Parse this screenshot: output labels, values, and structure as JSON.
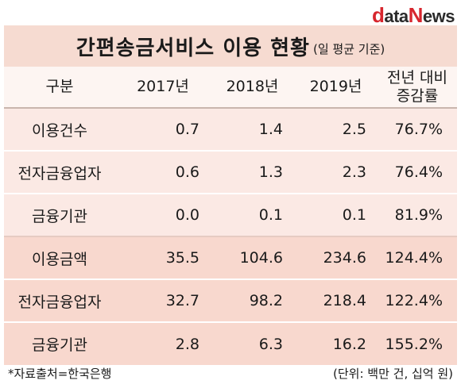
{
  "logo": {
    "part1": "d",
    "part2": "ata",
    "part3": "N",
    "part4": "ews"
  },
  "title": {
    "main": "간편송금서비스 이용 현황",
    "sub": "(일 평균 기준)"
  },
  "table": {
    "headers": [
      "구분",
      "2017년",
      "2018년",
      "2019년",
      "전년 대비",
      "증감률"
    ],
    "rows": [
      {
        "label": "이용건수",
        "y2017": "0.7",
        "y2018": "1.4",
        "y2019": "2.5",
        "rate": "76.7%"
      },
      {
        "label": "전자금융업자",
        "y2017": "0.6",
        "y2018": "1.3",
        "y2019": "2.3",
        "rate": "76.4%"
      },
      {
        "label": "금융기관",
        "y2017": "0.0",
        "y2018": "0.1",
        "y2019": "0.1",
        "rate": "81.9%"
      },
      {
        "label": "이용금액",
        "y2017": "35.5",
        "y2018": "104.6",
        "y2019": "234.6",
        "rate": "124.4%"
      },
      {
        "label": "전자금융업자",
        "y2017": "32.7",
        "y2018": "98.2",
        "y2019": "218.4",
        "rate": "122.4%"
      },
      {
        "label": "금융기관",
        "y2017": "2.8",
        "y2018": "6.3",
        "y2019": "16.2",
        "rate": "155.2%"
      }
    ]
  },
  "footer": {
    "source": "*자료출처=한국은행",
    "unit": "(단위: 백만 건, 십억 원)"
  },
  "colors": {
    "title_bg": "#f6dbd1",
    "group1_bg": "#fbe9e4",
    "group2_bg": "#f8d8ce",
    "logo_red": "#d7262e"
  }
}
